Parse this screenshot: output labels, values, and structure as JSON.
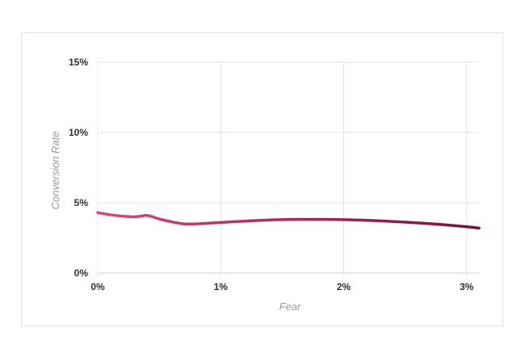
{
  "chart_data": {
    "type": "line",
    "title": "",
    "xlabel": "Fear",
    "ylabel": "Conversion Rate",
    "xlim": [
      0,
      3.1
    ],
    "ylim": [
      0,
      15
    ],
    "x_ticks": [
      0,
      1,
      2,
      3
    ],
    "x_tick_labels": [
      "0%",
      "1%",
      "2%",
      "3%"
    ],
    "y_ticks": [
      0,
      5,
      10,
      15
    ],
    "y_tick_labels": [
      "0%",
      "5%",
      "10%",
      "15%"
    ],
    "grid": true,
    "line_gradient": [
      "#e0457b",
      "#7a0e3e"
    ],
    "series": [
      {
        "x": [
          0,
          0.1,
          0.2,
          0.3,
          0.35,
          0.4,
          0.45,
          0.5,
          0.6,
          0.7,
          0.8,
          1.0,
          1.2,
          1.4,
          1.6,
          1.8,
          2.0,
          2.2,
          2.4,
          2.6,
          2.8,
          3.0,
          3.1
        ],
        "y": [
          4.3,
          4.15,
          4.05,
          4.0,
          4.05,
          4.1,
          4.0,
          3.85,
          3.65,
          3.5,
          3.5,
          3.6,
          3.7,
          3.78,
          3.82,
          3.82,
          3.8,
          3.75,
          3.67,
          3.57,
          3.45,
          3.3,
          3.2
        ]
      }
    ]
  }
}
